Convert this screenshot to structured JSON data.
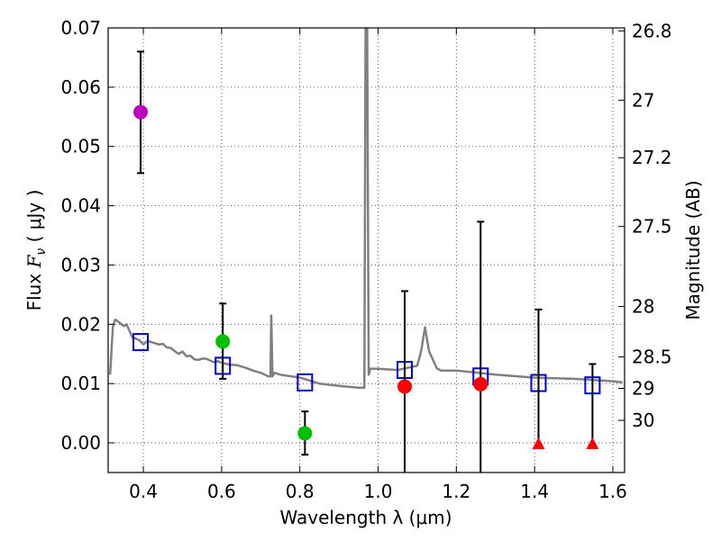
{
  "chart_data": {
    "type": "scatter",
    "xlabel": "Wavelength  λ (μm)",
    "ylabel": "Flux  F_ν  ( μJy )",
    "ylabel_parts": {
      "prefix": "Flux  ",
      "symbol": "F",
      "subscript": "ν",
      "unit": "  ( μJy )"
    },
    "right_ylabel": "Magnitude (AB)",
    "xlim": [
      0.31,
      1.63
    ],
    "ylim": [
      -0.005,
      0.07
    ],
    "xticks": [
      0.4,
      0.6,
      0.8,
      1.0,
      1.2,
      1.4,
      1.6
    ],
    "xtick_labels": [
      "0.4",
      "0.6",
      "0.8",
      "1.0",
      "1.2",
      "1.4",
      "1.6"
    ],
    "yticks": [
      0.0,
      0.01,
      0.02,
      0.03,
      0.04,
      0.05,
      0.06,
      0.07
    ],
    "ytick_labels": [
      "0.00",
      "0.01",
      "0.02",
      "0.03",
      "0.04",
      "0.05",
      "0.06",
      "0.07"
    ],
    "right_ticks": [
      {
        "label": "26.8",
        "flux": 0.0695
      },
      {
        "label": "27",
        "flux": 0.0578
      },
      {
        "label": "27.2",
        "flux": 0.0481
      },
      {
        "label": "27.5",
        "flux": 0.0365
      },
      {
        "label": "28",
        "flux": 0.023
      },
      {
        "label": "28.5",
        "flux": 0.0145
      },
      {
        "label": "29",
        "flux": 0.0092
      },
      {
        "label": "30",
        "flux": 0.0038
      }
    ],
    "grid": true,
    "colors": {
      "magenta": "#bf00bf",
      "green": "#00c000",
      "red": "#ff0000",
      "model": "#808080",
      "synthetic": "#0000cc",
      "errorbar": "#000000"
    },
    "series": [
      {
        "name": "template-spectrum",
        "kind": "line",
        "color": "#808080",
        "x": [
          0.315,
          0.322,
          0.328,
          0.335,
          0.342,
          0.35,
          0.357,
          0.365,
          0.372,
          0.38,
          0.39,
          0.4,
          0.41,
          0.42,
          0.43,
          0.44,
          0.45,
          0.46,
          0.47,
          0.48,
          0.49,
          0.5,
          0.51,
          0.52,
          0.53,
          0.54,
          0.55,
          0.56,
          0.57,
          0.58,
          0.59,
          0.6,
          0.62,
          0.64,
          0.66,
          0.68,
          0.7,
          0.72,
          0.725,
          0.727,
          0.73,
          0.735,
          0.75,
          0.8,
          0.85,
          0.9,
          0.95,
          0.965,
          0.968,
          0.972,
          0.976,
          0.98,
          1.0,
          1.05,
          1.1,
          1.11,
          1.12,
          1.13,
          1.15,
          1.16,
          1.2,
          1.3,
          1.4,
          1.5,
          1.6,
          1.625
        ],
        "y": [
          0.0115,
          0.0195,
          0.0208,
          0.0205,
          0.0201,
          0.0197,
          0.02,
          0.0188,
          0.0178,
          0.0176,
          0.0173,
          0.0166,
          0.0172,
          0.017,
          0.0168,
          0.0166,
          0.0167,
          0.0161,
          0.016,
          0.0155,
          0.015,
          0.0154,
          0.0146,
          0.0147,
          0.0141,
          0.014,
          0.0142,
          0.0142,
          0.0139,
          0.0136,
          0.0138,
          0.0135,
          0.0132,
          0.0131,
          0.0127,
          0.0122,
          0.0118,
          0.0112,
          0.0112,
          0.0215,
          0.0112,
          0.0118,
          0.0115,
          0.011,
          0.01,
          0.0096,
          0.0093,
          0.0093,
          0.07,
          0.07,
          0.0115,
          0.0125,
          0.0125,
          0.0123,
          0.013,
          0.0155,
          0.0195,
          0.0155,
          0.0126,
          0.0122,
          0.0122,
          0.0115,
          0.011,
          0.0108,
          0.0104,
          0.0102
        ]
      },
      {
        "name": "synthetic-photometry",
        "kind": "open-square",
        "color": "#0000cc",
        "x": [
          0.393,
          0.603,
          0.813,
          1.068,
          1.262,
          1.41,
          1.548
        ],
        "y": [
          0.017,
          0.013,
          0.0102,
          0.0123,
          0.0112,
          0.0101,
          0.0097
        ]
      },
      {
        "name": "magenta-detection",
        "kind": "filled-circle",
        "color": "#bf00bf",
        "x": [
          0.393
        ],
        "y": [
          0.0558
        ],
        "yerr_low": [
          0.0455
        ],
        "yerr_high": [
          0.066
        ]
      },
      {
        "name": "green-detections",
        "kind": "filled-circle",
        "color": "#00c000",
        "x": [
          0.603,
          0.813
        ],
        "y": [
          0.0171,
          0.0016
        ],
        "yerr_low": [
          0.0108,
          -0.002
        ],
        "yerr_high": [
          0.0235,
          0.0053
        ]
      },
      {
        "name": "red-detections",
        "kind": "filled-circle",
        "color": "#ff0000",
        "x": [
          1.068,
          1.262
        ],
        "y": [
          0.0095,
          0.0099
        ],
        "yerr_low": [
          -0.005,
          -0.005
        ],
        "yerr_high": [
          0.0256,
          0.0373
        ]
      },
      {
        "name": "red-upper-limits",
        "kind": "filled-triangle",
        "color": "#ff0000",
        "x": [
          1.41,
          1.548
        ],
        "y": [
          -0.0003,
          -0.0003
        ],
        "yerr_low": [
          -0.0003,
          -0.0003
        ],
        "yerr_high": [
          0.0225,
          0.0133
        ]
      }
    ]
  }
}
